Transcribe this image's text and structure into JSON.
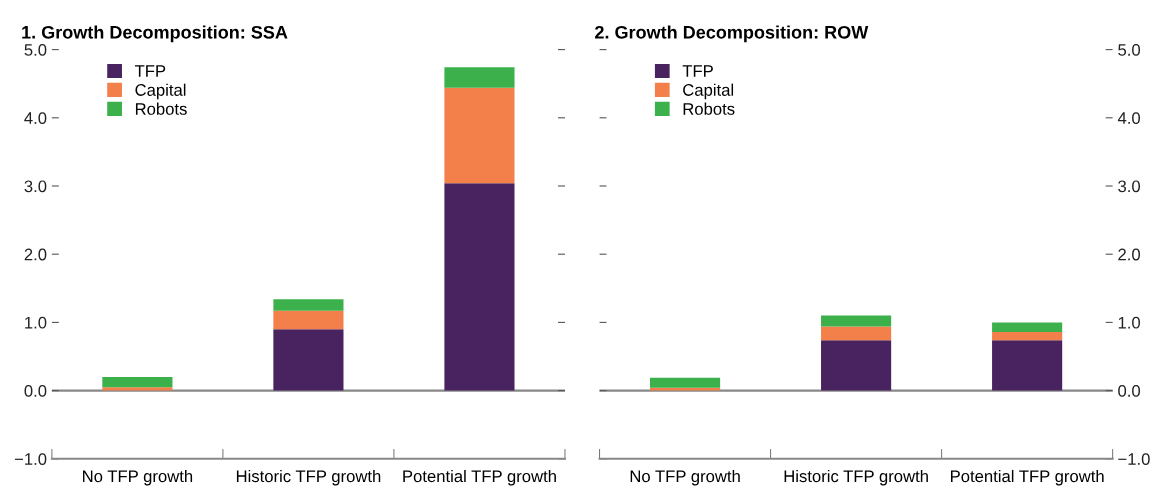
{
  "chart_data": [
    {
      "type": "bar",
      "title": "1. Growth Decomposition: SSA",
      "categories": [
        "No TFP growth",
        "Historic TFP growth",
        "Potential TFP growth"
      ],
      "stacked": true,
      "series": [
        {
          "name": "TFP",
          "color": "#48235f",
          "values": [
            0,
            0.9,
            3.04
          ]
        },
        {
          "name": "Capital",
          "color": "#f3804a",
          "values": [
            0.05,
            0.27,
            1.4
          ]
        },
        {
          "name": "Robots",
          "color": "#3bb04b",
          "values": [
            0.15,
            0.17,
            0.3
          ]
        }
      ],
      "ylim": [
        -1,
        5
      ],
      "yticks": [
        {
          "value": -1,
          "label": "−1.0"
        },
        {
          "value": 0,
          "label": "0.0"
        },
        {
          "value": 1,
          "label": "1.0"
        },
        {
          "value": 2,
          "label": "2.0"
        },
        {
          "value": 3,
          "label": "3.0"
        },
        {
          "value": 4,
          "label": "4.0"
        },
        {
          "value": 5,
          "label": "5.0"
        }
      ],
      "ref_lines": [
        {
          "axis": "y",
          "value": 0,
          "color": "#888888"
        }
      ],
      "legend": "top left",
      "grid": false
    },
    {
      "type": "bar",
      "title": "2. Growth Decomposition: ROW",
      "categories": [
        "No TFP growth",
        "Historic TFP growth",
        "Potential TFP growth"
      ],
      "stacked": true,
      "series": [
        {
          "name": "TFP",
          "color": "#48235f",
          "values": [
            0,
            0.74,
            0.74
          ]
        },
        {
          "name": "Capital",
          "color": "#f3804a",
          "values": [
            0.04,
            0.2,
            0.12
          ]
        },
        {
          "name": "Robots",
          "color": "#3bb04b",
          "values": [
            0.15,
            0.16,
            0.14
          ]
        }
      ],
      "ylim": [
        -1,
        5
      ],
      "yticks": [
        {
          "value": -1,
          "label": "−1.0"
        },
        {
          "value": 0,
          "label": "0.0"
        },
        {
          "value": 1,
          "label": "1.0"
        },
        {
          "value": 2,
          "label": "2.0"
        },
        {
          "value": 3,
          "label": "3.0"
        },
        {
          "value": 4,
          "label": "4.0"
        },
        {
          "value": 5,
          "label": "5.0"
        }
      ],
      "ref_lines": [
        {
          "axis": "y",
          "value": 0,
          "color": "#888888"
        }
      ],
      "legend": "top left",
      "grid": false
    }
  ]
}
